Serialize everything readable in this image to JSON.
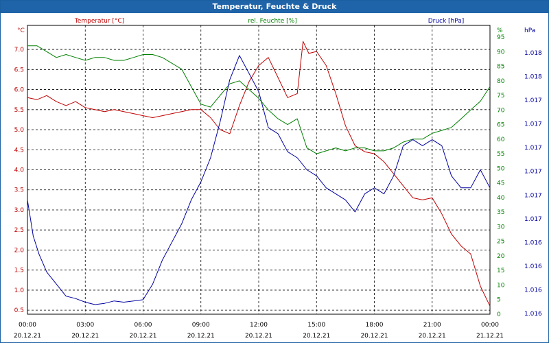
{
  "window": {
    "title": "Temperatur, Feuchte & Druck"
  },
  "colors": {
    "temperature": "#c00000",
    "humidity": "#008000",
    "pressure": "#0000a0",
    "title_bar": "#1f63a8"
  },
  "chart_data": {
    "type": "line",
    "title": "Temperatur, Feuchte & Druck",
    "grid": true,
    "xlim": [
      0,
      24
    ],
    "x_ticks": [
      {
        "time": "00:00",
        "date": "20.12.21"
      },
      {
        "time": "03:00",
        "date": "20.12.21"
      },
      {
        "time": "06:00",
        "date": "20.12.21"
      },
      {
        "time": "09:00",
        "date": "20.12.21"
      },
      {
        "time": "12:00",
        "date": "20.12.21"
      },
      {
        "time": "15:00",
        "date": "20.12.21"
      },
      {
        "time": "18:00",
        "date": "20.12.21"
      },
      {
        "time": "21:00",
        "date": "20.12.21"
      },
      {
        "time": "00:00",
        "date": "21.12.21"
      }
    ],
    "axes": {
      "temperature": {
        "label": "Temperatur [°C]",
        "unit": "°C",
        "range": [
          0.4,
          7.6
        ],
        "ticks": [
          "7.0",
          "6.5",
          "6.0",
          "5.5",
          "5.0",
          "4.5",
          "4.0",
          "3.5",
          "3.0",
          "2.5",
          "2.0",
          "1.5",
          "1.0",
          "0.5"
        ]
      },
      "humidity": {
        "label": "rel. Feuchte [%]",
        "unit": "%",
        "range": [
          0,
          99
        ],
        "ticks": [
          "95",
          "90",
          "85",
          "80",
          "75",
          "70",
          "65",
          "60",
          "55",
          "50",
          "45",
          "40",
          "35",
          "30",
          "25",
          "20",
          "15",
          "10",
          "5",
          "0"
        ]
      },
      "pressure": {
        "label": "Druck [hPa]",
        "unit": "hPa",
        "range": [
          1015.95,
          1018.35
        ],
        "ticks": [
          "1.018",
          "1.018",
          "1.017",
          "1.017",
          "1.017",
          "1.017",
          "1.017",
          "1.017",
          "1.016",
          "1.016",
          "1.016",
          "1.016"
        ]
      }
    },
    "series": [
      {
        "name": "Temperatur [°C]",
        "axis": "temperature",
        "x": [
          0,
          0.5,
          1,
          1.5,
          2,
          2.5,
          3,
          3.5,
          4,
          4.5,
          5,
          5.5,
          6,
          6.5,
          7,
          7.5,
          8,
          8.5,
          9,
          9.5,
          10,
          10.5,
          11,
          11.5,
          12,
          12.5,
          13,
          13.5,
          14,
          14.3,
          14.6,
          15,
          15.5,
          16,
          16.5,
          17,
          17.5,
          18,
          18.5,
          19,
          19.5,
          20,
          20.5,
          21,
          21.5,
          22,
          22.5,
          23,
          23.5,
          24
        ],
        "y": [
          5.8,
          5.75,
          5.85,
          5.7,
          5.6,
          5.7,
          5.55,
          5.5,
          5.45,
          5.5,
          5.45,
          5.4,
          5.35,
          5.3,
          5.35,
          5.4,
          5.45,
          5.5,
          5.5,
          5.3,
          5.0,
          4.9,
          5.6,
          6.2,
          6.6,
          6.8,
          6.3,
          5.8,
          5.9,
          7.2,
          6.9,
          6.95,
          6.6,
          5.9,
          5.1,
          4.6,
          4.45,
          4.4,
          4.2,
          3.9,
          3.6,
          3.3,
          3.25,
          3.3,
          2.9,
          2.4,
          2.1,
          1.9,
          1.1,
          0.6
        ]
      },
      {
        "name": "rel. Feuchte [%]",
        "axis": "humidity",
        "x": [
          0,
          0.5,
          1,
          1.5,
          2,
          2.5,
          3,
          3.5,
          4,
          4.5,
          5,
          5.5,
          6,
          6.5,
          7,
          7.5,
          8,
          8.5,
          9,
          9.5,
          10,
          10.5,
          11,
          11.5,
          12,
          12.5,
          13,
          13.5,
          14,
          14.5,
          15,
          15.5,
          16,
          16.5,
          17,
          17.5,
          18,
          18.5,
          19,
          19.5,
          20,
          20.5,
          21,
          21.5,
          22,
          22.5,
          23,
          23.5,
          24
        ],
        "y": [
          92,
          92,
          90,
          88,
          89,
          88,
          87,
          88,
          88,
          87,
          87,
          88,
          89,
          89,
          88,
          86,
          84,
          78,
          72,
          71,
          75,
          79,
          80,
          77,
          74,
          70,
          67,
          65,
          67,
          57,
          55,
          56,
          57,
          56,
          57,
          57,
          56,
          56,
          57,
          59,
          60,
          60,
          62,
          63,
          64,
          67,
          70,
          73,
          78
        ]
      },
      {
        "name": "Druck [hPa]",
        "axis": "pressure",
        "x": [
          0,
          0.3,
          0.6,
          1,
          1.5,
          2,
          2.5,
          3,
          3.5,
          4,
          4.5,
          5,
          5.5,
          6,
          6.5,
          7,
          7.5,
          8,
          8.5,
          9,
          9.5,
          10,
          10.5,
          11,
          11.5,
          12,
          12.5,
          13,
          13.5,
          14,
          14.5,
          15,
          15.5,
          16,
          16.5,
          17,
          17.5,
          18,
          18.5,
          19,
          19.5,
          20,
          20.5,
          21,
          21.5,
          22,
          22.5,
          23,
          23.5,
          24
        ],
        "y": [
          1016.9,
          1016.6,
          1016.45,
          1016.3,
          1016.2,
          1016.1,
          1016.08,
          1016.05,
          1016.03,
          1016.04,
          1016.06,
          1016.05,
          1016.06,
          1016.07,
          1016.2,
          1016.4,
          1016.55,
          1016.7,
          1016.9,
          1017.05,
          1017.25,
          1017.55,
          1017.9,
          1018.1,
          1017.95,
          1017.8,
          1017.5,
          1017.45,
          1017.3,
          1017.25,
          1017.15,
          1017.1,
          1017.0,
          1016.95,
          1016.9,
          1016.8,
          1016.95,
          1017.0,
          1016.95,
          1017.1,
          1017.35,
          1017.4,
          1017.35,
          1017.4,
          1017.35,
          1017.1,
          1017.0,
          1017.0,
          1017.15,
          1017.0
        ]
      }
    ]
  }
}
